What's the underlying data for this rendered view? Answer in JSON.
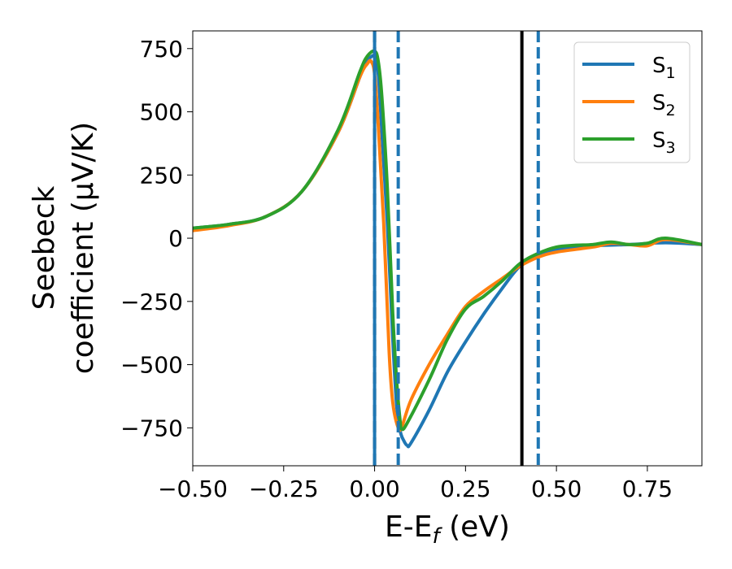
{
  "chart_data": {
    "type": "line",
    "xlabel": {
      "main": "E-E",
      "sub": "f",
      "suffix": " (eV)"
    },
    "ylabel": {
      "line1": "Seebeck",
      "line2": "coefficient  (μV/K)"
    },
    "xlim": [
      -0.5,
      0.9
    ],
    "ylim": [
      -900,
      820
    ],
    "xticks": [
      -0.5,
      -0.25,
      0.0,
      0.25,
      0.5,
      0.75
    ],
    "xtick_labels": [
      "−0.50",
      "−0.25",
      "0.00",
      "0.25",
      "0.50",
      "0.75"
    ],
    "yticks": [
      750,
      500,
      250,
      0,
      -250,
      -500,
      -750
    ],
    "ytick_labels": [
      "750",
      "500",
      "250",
      "0",
      "−250",
      "−500",
      "−750"
    ],
    "grid": false,
    "legend_position": "top-right",
    "vertical_lines": [
      {
        "x": 0.0,
        "color": "#000000",
        "style": "dashed"
      },
      {
        "x": 0.0,
        "color": "#1f77b4",
        "style": "solid"
      },
      {
        "x": 0.065,
        "color": "#1f77b4",
        "style": "dashed"
      },
      {
        "x": 0.405,
        "color": "#000000",
        "style": "solid"
      },
      {
        "x": 0.45,
        "color": "#1f77b4",
        "style": "dashed"
      }
    ],
    "series": [
      {
        "name": "S",
        "sub": "1",
        "color": "#1f77b4",
        "points": [
          [
            -0.5,
            40
          ],
          [
            -0.4,
            55
          ],
          [
            -0.3,
            85
          ],
          [
            -0.2,
            185
          ],
          [
            -0.1,
            420
          ],
          [
            -0.04,
            640
          ],
          [
            -0.02,
            700
          ],
          [
            0.0,
            720
          ],
          [
            0.01,
            650
          ],
          [
            0.02,
            420
          ],
          [
            0.035,
            60
          ],
          [
            0.05,
            -400
          ],
          [
            0.06,
            -650
          ],
          [
            0.07,
            -760
          ],
          [
            0.08,
            -800
          ],
          [
            0.09,
            -820
          ],
          [
            0.1,
            -810
          ],
          [
            0.15,
            -680
          ],
          [
            0.2,
            -530
          ],
          [
            0.25,
            -410
          ],
          [
            0.3,
            -300
          ],
          [
            0.35,
            -200
          ],
          [
            0.4,
            -110
          ],
          [
            0.45,
            -70
          ],
          [
            0.5,
            -45
          ],
          [
            0.6,
            -30
          ],
          [
            0.7,
            -25
          ],
          [
            0.8,
            -18
          ],
          [
            0.9,
            -25
          ]
        ]
      },
      {
        "name": "S",
        "sub": "2",
        "color": "#ff7f0e",
        "points": [
          [
            -0.5,
            30
          ],
          [
            -0.4,
            50
          ],
          [
            -0.3,
            85
          ],
          [
            -0.2,
            185
          ],
          [
            -0.1,
            420
          ],
          [
            -0.04,
            640
          ],
          [
            -0.02,
            690
          ],
          [
            -0.01,
            700
          ],
          [
            0.0,
            650
          ],
          [
            0.01,
            450
          ],
          [
            0.025,
            60
          ],
          [
            0.04,
            -450
          ],
          [
            0.05,
            -650
          ],
          [
            0.065,
            -750
          ],
          [
            0.075,
            -745
          ],
          [
            0.1,
            -640
          ],
          [
            0.15,
            -500
          ],
          [
            0.2,
            -380
          ],
          [
            0.25,
            -270
          ],
          [
            0.3,
            -210
          ],
          [
            0.35,
            -160
          ],
          [
            0.4,
            -110
          ],
          [
            0.45,
            -75
          ],
          [
            0.5,
            -55
          ],
          [
            0.6,
            -35
          ],
          [
            0.65,
            -20
          ],
          [
            0.7,
            -25
          ],
          [
            0.75,
            -30
          ],
          [
            0.8,
            -5
          ],
          [
            0.9,
            -25
          ]
        ]
      },
      {
        "name": "S",
        "sub": "3",
        "color": "#2ca02c",
        "points": [
          [
            -0.5,
            40
          ],
          [
            -0.4,
            55
          ],
          [
            -0.3,
            85
          ],
          [
            -0.2,
            185
          ],
          [
            -0.1,
            430
          ],
          [
            -0.04,
            660
          ],
          [
            -0.02,
            720
          ],
          [
            0.0,
            740
          ],
          [
            0.01,
            700
          ],
          [
            0.02,
            560
          ],
          [
            0.035,
            200
          ],
          [
            0.05,
            -300
          ],
          [
            0.06,
            -550
          ],
          [
            0.07,
            -720
          ],
          [
            0.075,
            -755
          ],
          [
            0.09,
            -730
          ],
          [
            0.15,
            -560
          ],
          [
            0.2,
            -400
          ],
          [
            0.25,
            -280
          ],
          [
            0.3,
            -230
          ],
          [
            0.35,
            -170
          ],
          [
            0.4,
            -100
          ],
          [
            0.45,
            -60
          ],
          [
            0.5,
            -35
          ],
          [
            0.55,
            -28
          ],
          [
            0.6,
            -25
          ],
          [
            0.65,
            -15
          ],
          [
            0.7,
            -25
          ],
          [
            0.75,
            -20
          ],
          [
            0.8,
            0
          ],
          [
            0.9,
            -25
          ]
        ]
      }
    ]
  }
}
